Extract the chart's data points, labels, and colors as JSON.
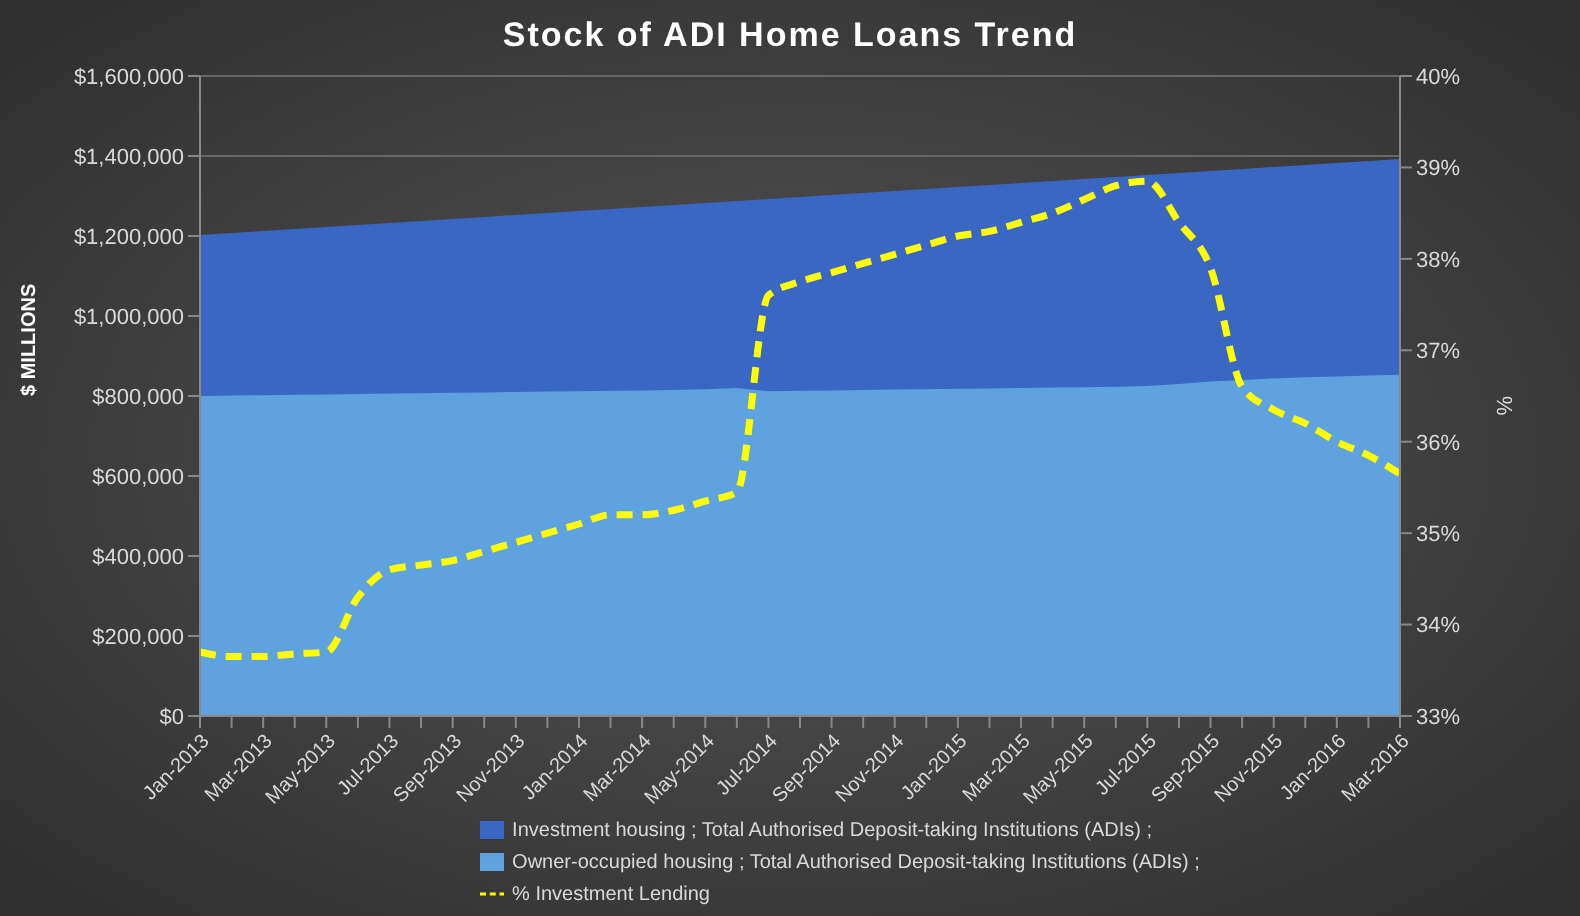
{
  "chart_data": {
    "type": "area",
    "stacked": true,
    "title": "Stock of ADI Home Loans Trend",
    "ylabel": "$ MILLIONS",
    "y2label": "%",
    "categories": [
      "Jan-2013",
      null,
      "Mar-2013",
      null,
      "May-2013",
      null,
      "Jul-2013",
      null,
      "Sep-2013",
      null,
      "Nov-2013",
      null,
      "Jan-2014",
      null,
      "Mar-2014",
      null,
      "May-2014",
      null,
      "Jul-2014",
      null,
      "Sep-2014",
      null,
      "Nov-2014",
      null,
      "Jan-2015",
      null,
      "Mar-2015",
      null,
      "May-2015",
      null,
      "Jul-2015",
      null,
      "Sep-2015",
      null,
      "Nov-2015",
      null,
      "Jan-2016",
      null,
      "Mar-2016"
    ],
    "series": [
      {
        "name": "Owner-occupied housing ;  Total Authorised Deposit-taking Institutions (ADIs) ;",
        "color": "#5ea2e0",
        "values": [
          800000,
          801000,
          802000,
          803000,
          804000,
          805000,
          806000,
          807000,
          808000,
          809000,
          810000,
          811000,
          812000,
          813000,
          814000,
          815000,
          817000,
          820000,
          812000,
          813000,
          814000,
          815000,
          816000,
          817000,
          818000,
          819000,
          820000,
          821000,
          822000,
          823000,
          825000,
          830000,
          836000,
          840000,
          844000,
          847000,
          849000,
          851000,
          853000
        ]
      },
      {
        "name": "Investment housing ;  Total Authorised Deposit-taking Institutions (ADIs) ;",
        "color": "#3a66c4",
        "values": [
          400000,
          404000,
          408000,
          412000,
          416000,
          420000,
          424000,
          428000,
          432000,
          436000,
          440000,
          444000,
          448000,
          452000,
          456000,
          460000,
          463000,
          465000,
          478000,
          482000,
          486000,
          490000,
          494000,
          498000,
          502000,
          506000,
          510000,
          514000,
          518000,
          522000,
          525000,
          525000,
          524000,
          525000,
          526000,
          528000,
          531000,
          534000,
          537000
        ]
      },
      {
        "name": "% Investment Lending",
        "type": "line",
        "axis": "y2",
        "color": "#ffff00",
        "line_style": "dashed",
        "marker": "none",
        "values": [
          33.7,
          33.65,
          33.65,
          33.68,
          33.7,
          34.3,
          34.6,
          34.65,
          34.7,
          34.8,
          34.9,
          35.0,
          35.1,
          35.2,
          35.2,
          35.25,
          35.35,
          35.45,
          37.6,
          37.75,
          37.85,
          37.95,
          38.05,
          38.15,
          38.25,
          38.3,
          38.4,
          38.5,
          38.65,
          38.8,
          38.85,
          38.4,
          37.9,
          36.6,
          36.35,
          36.2,
          36.0,
          35.85,
          35.65
        ]
      }
    ],
    "ylim": [
      0,
      1600000
    ],
    "yticks": [
      {
        "value": 0,
        "label": "$0"
      },
      {
        "value": 200000,
        "label": "$200,000"
      },
      {
        "value": 400000,
        "label": "$400,000"
      },
      {
        "value": 600000,
        "label": "$600,000"
      },
      {
        "value": 800000,
        "label": "$800,000"
      },
      {
        "value": 1000000,
        "label": "$1,000,000"
      },
      {
        "value": 1200000,
        "label": "$1,200,000"
      },
      {
        "value": 1400000,
        "label": "$1,400,000"
      },
      {
        "value": 1600000,
        "label": "$1,600,000"
      }
    ],
    "y2lim": [
      33,
      40
    ],
    "y2ticks": [
      {
        "value": 33,
        "label": "33%"
      },
      {
        "value": 34,
        "label": "34%"
      },
      {
        "value": 35,
        "label": "35%"
      },
      {
        "value": 36,
        "label": "36%"
      },
      {
        "value": 37,
        "label": "37%"
      },
      {
        "value": 38,
        "label": "38%"
      },
      {
        "value": 39,
        "label": "39%"
      },
      {
        "value": 40,
        "label": "40%"
      }
    ],
    "grid": "y",
    "legend": "bottom"
  }
}
